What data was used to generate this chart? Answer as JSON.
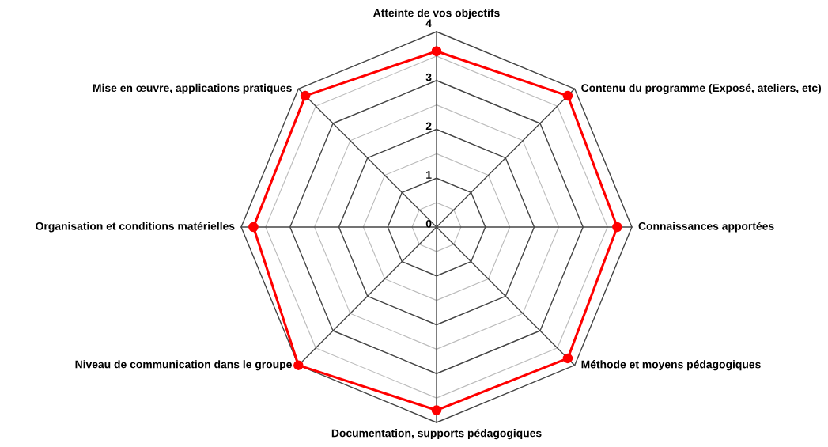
{
  "chart_data": {
    "type": "radar",
    "categories": [
      "Atteinte de vos objectifs",
      "Contenu du programme (Exposé, ateliers, etc)",
      "Connaissances apportées",
      "Méthode et moyens pédagogiques",
      "Documentation, supports pédagogiques",
      "Niveau de communication dans le groupe",
      "Organisation et conditions matérielles",
      "Mise en œuvre, applications pratiques"
    ],
    "series": [
      {
        "color": "#ff0000",
        "values": [
          3.6,
          3.8,
          3.7,
          3.8,
          3.75,
          4.0,
          3.75,
          3.8
        ]
      }
    ],
    "ylim": [
      0,
      4
    ],
    "yticks": [
      0,
      1,
      2,
      3,
      4
    ],
    "grid": true,
    "marker": "circle",
    "line_style": "solid"
  }
}
